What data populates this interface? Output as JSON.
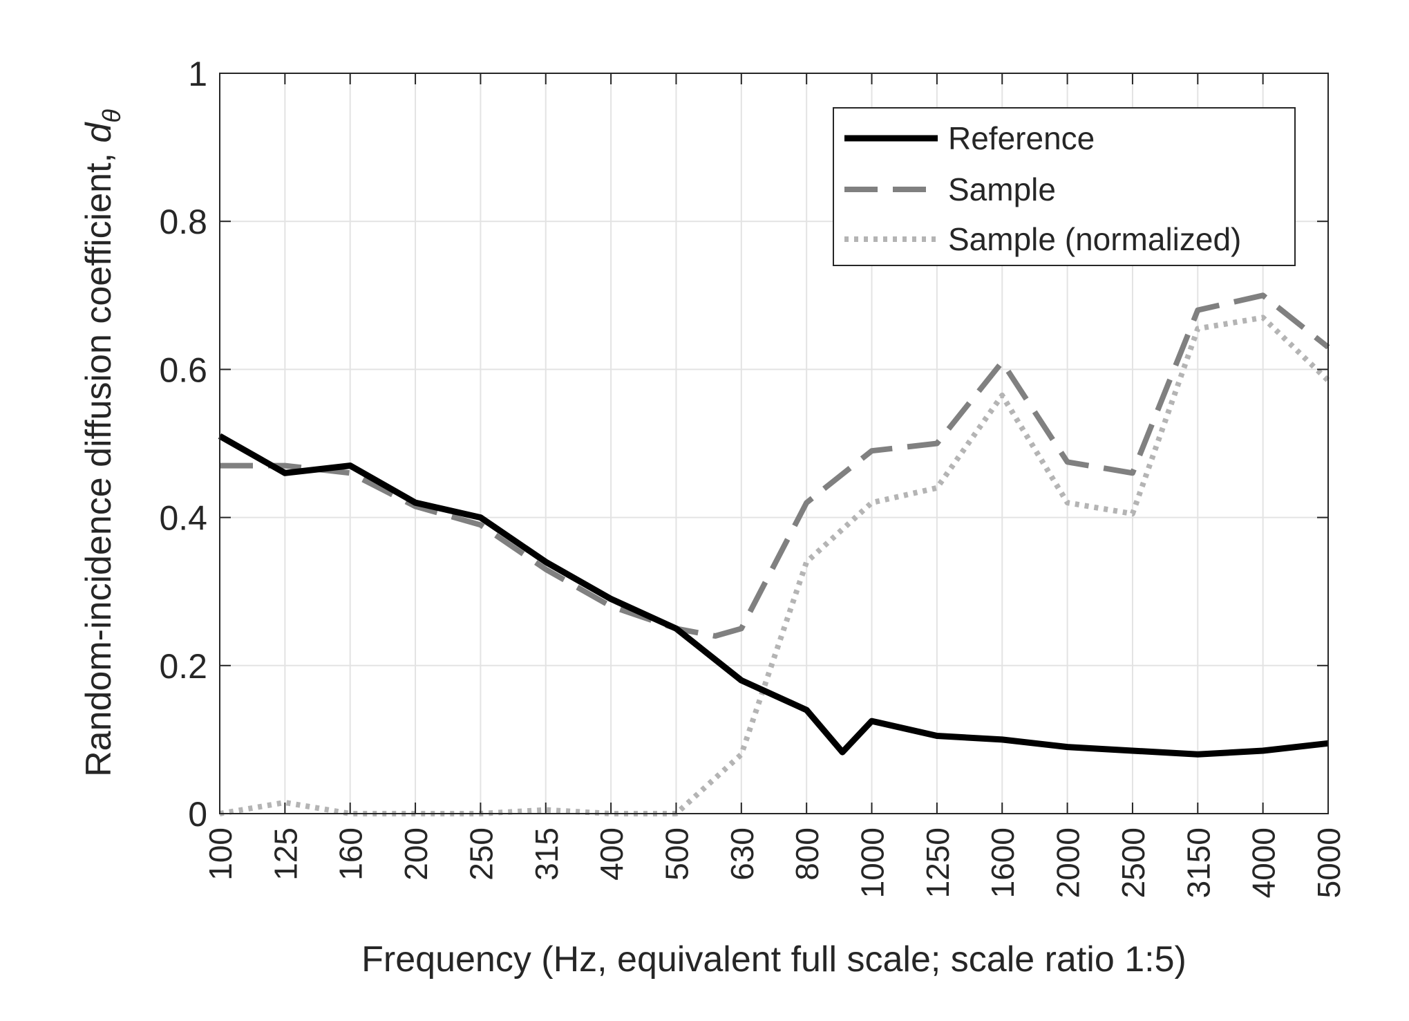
{
  "chart_data": {
    "type": "line",
    "xlabel": "Frequency (Hz, equivalent full scale; scale ratio 1:5)",
    "ylabel": "Random-incidence diffusion coefficient, ",
    "ylabel_symbol": "d",
    "ylabel_subscript": "θ",
    "categories": [
      "100",
      "125",
      "160",
      "200",
      "250",
      "315",
      "400",
      "500",
      "630",
      "800",
      "1000",
      "1250",
      "1600",
      "2000",
      "2500",
      "3150",
      "4000",
      "5000"
    ],
    "yticks": [
      "0",
      "0.2",
      "0.4",
      "0.6",
      "0.8",
      "1"
    ],
    "ylim": [
      0,
      1
    ],
    "grid": true,
    "legend_position": "top-right",
    "series": [
      {
        "name": "Reference",
        "style": "solid",
        "color": "#000000",
        "values": [
          0.51,
          0.46,
          0.47,
          0.42,
          0.4,
          0.34,
          0.29,
          0.25,
          0.18,
          0.14,
          0.125,
          0.105,
          0.1,
          0.09,
          0.085,
          0.08,
          0.085,
          0.095
        ],
        "extra_points": [
          [
            9.55,
            0.083
          ]
        ]
      },
      {
        "name": "Sample",
        "style": "dashed",
        "color": "#808080",
        "values": [
          0.47,
          0.47,
          0.46,
          0.415,
          0.39,
          0.33,
          0.28,
          0.25,
          0.25,
          0.42,
          0.49,
          0.5,
          0.61,
          0.475,
          0.46,
          0.68,
          0.7,
          0.63
        ],
        "extra_points": [
          [
            7.6,
            0.24
          ]
        ]
      },
      {
        "name": "Sample (normalized)",
        "style": "dotted",
        "color": "#b4b4b4",
        "values": [
          0.0,
          0.015,
          0.0,
          0.0,
          0.0,
          0.005,
          0.0,
          0.0,
          0.08,
          0.34,
          0.42,
          0.44,
          0.565,
          0.42,
          0.405,
          0.655,
          0.67,
          0.585
        ]
      }
    ]
  }
}
